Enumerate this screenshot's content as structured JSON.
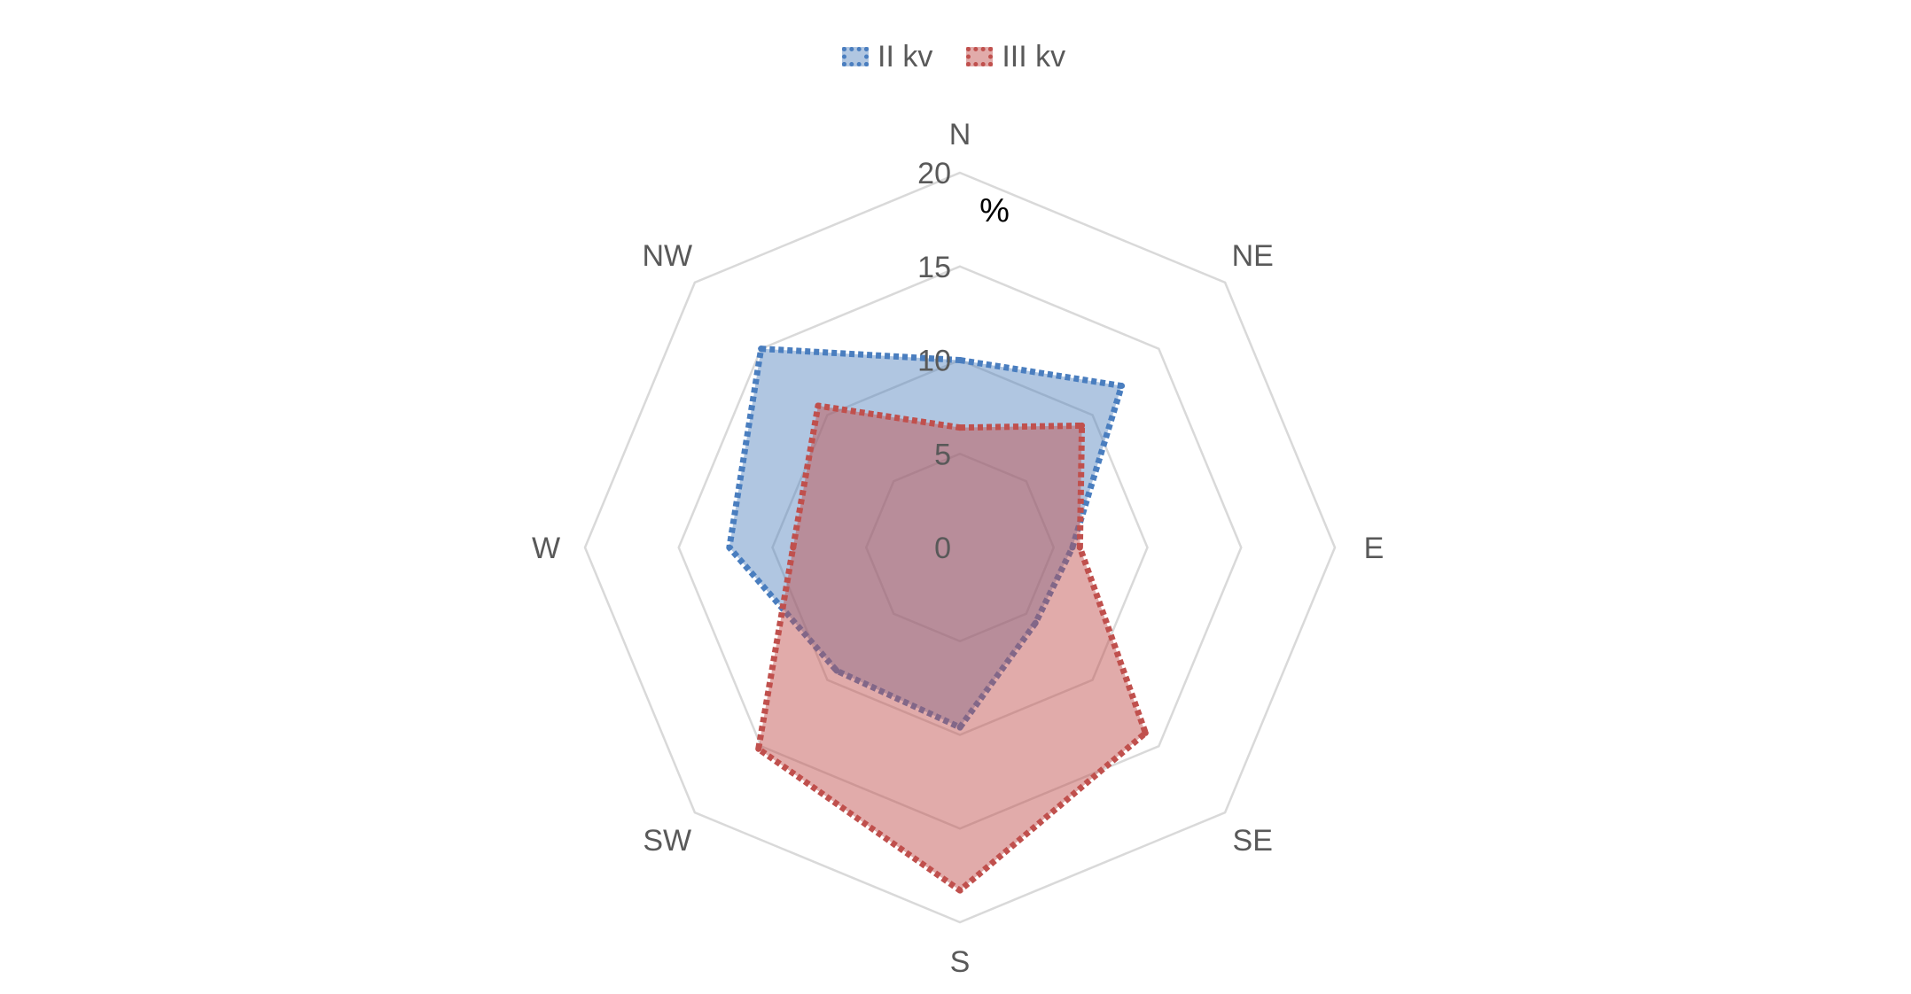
{
  "chart_data": {
    "type": "radar",
    "categories": [
      "N",
      "NE",
      "E",
      "SE",
      "S",
      "SW",
      "W",
      "NW"
    ],
    "series": [
      {
        "name": "II kv",
        "values": [
          10.0,
          12.2,
          6.0,
          5.7,
          9.6,
          9.3,
          12.3,
          15.0
        ],
        "color": "#4a7ebf",
        "fill": "rgba(79,129,189,0.45)"
      },
      {
        "name": "III kv",
        "values": [
          6.4,
          9.2,
          6.4,
          14.0,
          18.3,
          15.2,
          8.9,
          10.7
        ],
        "color": "#c0504d",
        "fill": "rgba(192,80,77,0.48)"
      }
    ],
    "r_ticks": [
      0,
      5,
      10,
      15,
      20
    ],
    "rlim": [
      0,
      20
    ],
    "ylabel": "%",
    "legend_position": "top",
    "grid": true,
    "grid_color": "#d9d9d9"
  }
}
